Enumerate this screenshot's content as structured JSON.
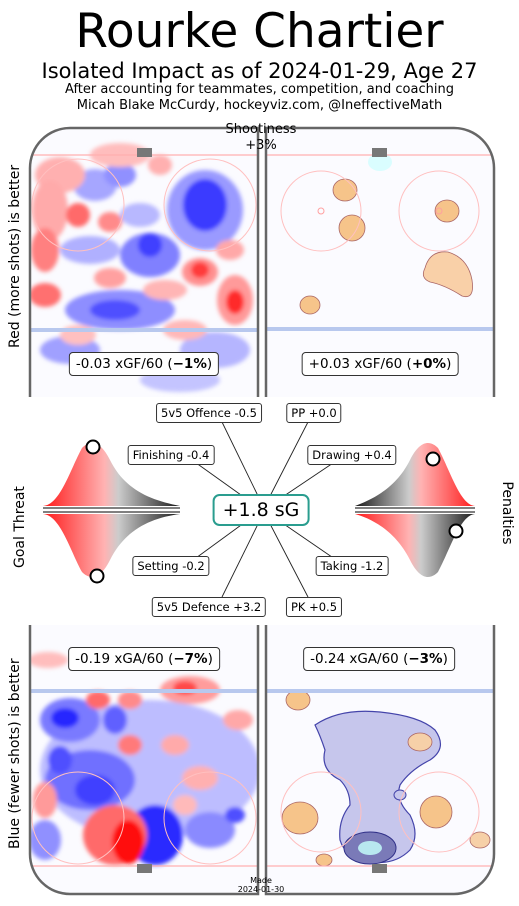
{
  "header": {
    "player_name": "Rourke Chartier",
    "subtitle": "Isolated Impact as of 2024-01-29, Age 27",
    "credit_line1": "After accounting for teammates, competition, and coaching",
    "credit_line2": "Micah Blake McCurdy, hockeyviz.com, @IneffectiveMath"
  },
  "labels": {
    "shootiness_title": "Shootiness",
    "shootiness_value": "+3%",
    "offence_side": "Red (more shots) is better",
    "defence_side": "Blue (fewer shots) is better",
    "goal_threat": "Goal Threat",
    "penalties": "Penalties",
    "made_label": "Made",
    "made_date": "2024-01-30"
  },
  "colors": {
    "more_shots": "#ff2020",
    "fewer_shots": "#2020ff",
    "special_teams": "#f6c48a",
    "total_border": "#2a9d8f",
    "rink_line": "#666666"
  },
  "chart_data": {
    "type": "other",
    "title": "Rourke Chartier",
    "subtitle": "Isolated Impact as of 2024-01-29, Age 27",
    "shootiness": "+3%",
    "total": {
      "label": "+1.8 sG",
      "value": 1.8
    },
    "rates": {
      "ev_offence": {
        "text": "-0.03 xGF/60 (",
        "pct": "−1%",
        "close": ")",
        "value": -0.03,
        "percent": -1
      },
      "pp_offence": {
        "text": "+0.03 xGF/60 (",
        "pct": "+0%",
        "close": ")",
        "value": 0.03,
        "percent": 0
      },
      "ev_defence": {
        "text": "-0.19 xGA/60 (",
        "pct": "−7%",
        "close": ")",
        "value": -0.19,
        "percent": -7
      },
      "pk_defence": {
        "text": "-0.24 xGA/60 (",
        "pct": "−3%",
        "close": ")",
        "value": -0.24,
        "percent": -3
      }
    },
    "components": [
      {
        "key": "offence",
        "label": "5v5 Offence -0.5",
        "value": -0.5
      },
      {
        "key": "pp",
        "label": "PP +0.0",
        "value": 0.0
      },
      {
        "key": "finishing",
        "label": "Finishing -0.4",
        "value": -0.4
      },
      {
        "key": "drawing",
        "label": "Drawing +0.4",
        "value": 0.4
      },
      {
        "key": "setting",
        "label": "Setting -0.2",
        "value": -0.2
      },
      {
        "key": "taking",
        "label": "Taking -1.2",
        "value": -1.2
      },
      {
        "key": "defence",
        "label": "5v5 Defence +3.2",
        "value": 3.2
      },
      {
        "key": "pk",
        "label": "PK +0.5",
        "value": 0.5
      }
    ],
    "distributions": {
      "goal_threat": {
        "finishing_marker": 0.45,
        "setting_marker": 0.56
      },
      "penalties": {
        "drawing_marker": 0.62,
        "taking_marker": 0.8
      }
    }
  }
}
